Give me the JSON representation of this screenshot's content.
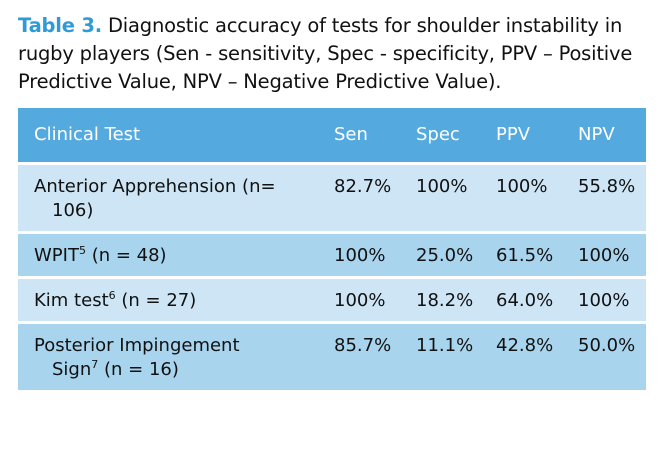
{
  "caption": {
    "label": "Table 3.",
    "text": "Diagnostic accuracy of tests for shoulder instability in rugby players (Sen - sensitivity, Spec - specificity, PPV – Positive Predictive Value, NPV – Negative Predictive Value)."
  },
  "table": {
    "headers": [
      "Clinical Test",
      "Sen",
      "Spec",
      "PPV",
      "NPV"
    ],
    "rows": [
      {
        "test_line1": "Anterior Apprehension (n=",
        "test_line2": "106)",
        "sup": "",
        "sup_after": "",
        "sen": "82.7%",
        "spec": "100%",
        "ppv": "100%",
        "npv": "55.8%"
      },
      {
        "test_line1": "WPIT",
        "sup": "5",
        "sup_after": " (n = 48)",
        "test_line2": "",
        "sen": "100%",
        "spec": "25.0%",
        "ppv": "61.5%",
        "npv": "100%"
      },
      {
        "test_line1": "Kim test",
        "sup": "6",
        "sup_after": " (n = 27)",
        "test_line2": "",
        "sen": "100%",
        "spec": "18.2%",
        "ppv": "64.0%",
        "npv": "100%"
      },
      {
        "test_line1": "Posterior Impingement",
        "test_line2": "Sign",
        "sup": "7",
        "sup_after": " (n = 16)",
        "sen": "85.7%",
        "spec": "11.1%",
        "ppv": "42.8%",
        "npv": "50.0%"
      }
    ]
  },
  "colors": {
    "caption_label": "#2e9bd6",
    "header_bg": "#54aadf",
    "row_light": "#cde5f5",
    "row_dark": "#a9d4ee"
  }
}
